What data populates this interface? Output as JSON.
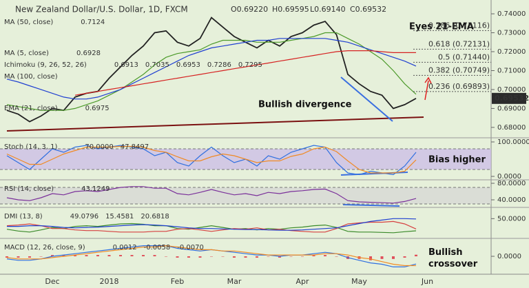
{
  "chart_data": [
    {
      "type": "line",
      "title": "New Zealand Dollar/U.S. Dollar, 1D, FXCM",
      "ohlc": [
        "O0.69220",
        "H0.69595",
        "L0.69140",
        "C0.69532"
      ],
      "ylim": [
        0.6745,
        0.7473
      ],
      "yticks": [
        {
          "value": 0.68,
          "label": "0.68000"
        },
        {
          "value": 0.69,
          "label": "0.69000"
        },
        {
          "value": 0.7,
          "label": "0.70000"
        },
        {
          "value": 0.71,
          "label": "0.71000"
        },
        {
          "value": 0.72,
          "label": "0.72000"
        },
        {
          "value": 0.73,
          "label": "0.73000"
        },
        {
          "value": 0.74,
          "label": "0.74000"
        }
      ],
      "series": [
        {
          "color": "#222222",
          "values": [
            0.689,
            0.687,
            0.683,
            0.686,
            0.69,
            0.689,
            0.696,
            0.698,
            0.699,
            0.706,
            0.712,
            0.718,
            0.723,
            0.73,
            0.731,
            0.725,
            0.723,
            0.727,
            0.738,
            0.733,
            0.728,
            0.725,
            0.722,
            0.726,
            0.723,
            0.728,
            0.73,
            0.734,
            0.736,
            0.729,
            0.708,
            0.703,
            0.699,
            0.697,
            0.69,
            0.692,
            0.69532,
            null
          ]
        },
        {
          "name": "EMA (21, close)",
          "color": "#4c9a2a",
          "values": [
            0.692,
            0.691,
            0.69,
            0.689,
            0.689,
            0.689,
            0.69,
            0.692,
            0.694,
            0.697,
            0.7,
            0.704,
            0.708,
            0.713,
            0.717,
            0.719,
            0.72,
            0.721,
            0.724,
            0.726,
            0.726,
            0.726,
            0.725,
            0.725,
            0.725,
            0.726,
            0.727,
            0.728,
            0.73,
            0.73,
            0.727,
            0.724,
            0.72,
            0.716,
            0.71,
            0.703,
            0.6975,
            null
          ]
        },
        {
          "name": "MA (50, close)",
          "color": "#1f3fd1",
          "values": [
            0.7055,
            0.704,
            0.702,
            0.7,
            0.698,
            0.696,
            0.695,
            0.695,
            0.696,
            0.698,
            0.7,
            0.703,
            0.706,
            0.709,
            0.712,
            0.715,
            0.718,
            0.72,
            0.722,
            0.723,
            0.724,
            0.725,
            0.726,
            0.726,
            0.727,
            0.727,
            0.727,
            0.727,
            0.727,
            0.726,
            0.725,
            0.723,
            0.721,
            0.719,
            0.717,
            0.715,
            0.7124,
            null
          ]
        },
        {
          "name": "MA (100, close)",
          "color": "#d62020",
          "values": [
            null,
            null,
            null,
            null,
            null,
            null,
            0.697,
            0.698,
            0.699,
            0.7,
            0.701,
            0.702,
            0.703,
            0.704,
            0.705,
            0.706,
            0.707,
            0.708,
            0.709,
            0.71,
            0.711,
            0.712,
            0.713,
            0.714,
            0.715,
            0.716,
            0.717,
            0.718,
            0.719,
            0.72,
            0.7205,
            0.7205,
            0.7205,
            0.72,
            0.7195,
            0.7195,
            0.7195,
            null
          ]
        }
      ],
      "legend": [
        {
          "label": "MA (50, close)",
          "values": [
            "0.7124"
          ],
          "colors": [
            "#1f3fd1"
          ]
        },
        {
          "label": "MA (5, close)",
          "values": [
            "0.6928"
          ],
          "colors": [
            "#d62020"
          ]
        },
        {
          "label": "Ichimoku (9, 26, 52, 26)",
          "values": [
            "0.6913",
            "0.7035",
            "0.6953",
            "0.7286",
            "0.7295"
          ],
          "colors": [
            "#1f3fd1",
            "#b03030",
            "#3a7a2a",
            "#3a7a2a",
            "#d62020"
          ]
        },
        {
          "label": "MA (100, close)",
          "values": [],
          "colors": []
        },
        {
          "label": "EMA (21, close)",
          "values": [
            "0.6975"
          ],
          "colors": [
            "#3a9a2a"
          ]
        }
      ],
      "fib_levels": [
        {
          "label": "0.786 (0.73116)",
          "value": 0.73116
        },
        {
          "label": "0.618 (0.72131)",
          "value": 0.72131
        },
        {
          "label": "0.5 (0.71440)",
          "value": 0.7144
        },
        {
          "label": "0.382 (0.70749)",
          "value": 0.70749
        },
        {
          "label": "0.236 (0.69893)",
          "value": 0.69893
        }
      ],
      "price_label": {
        "value": 0.69532,
        "label": "0.69532"
      },
      "annotations": [
        "Eyes 21-EMA",
        "Bullish divergence"
      ]
    },
    {
      "type": "line",
      "ylim": [
        -10,
        110
      ],
      "band": [
        20,
        80
      ],
      "yticks": [
        {
          "value": 100,
          "label": "100.0000"
        },
        {
          "value": 0,
          "label": "0.0000"
        }
      ],
      "series": [
        {
          "name": "Stoch (14, 3, 1)",
          "color": "#2f6fe0",
          "values": [
            60,
            40,
            20,
            50,
            80,
            70,
            85,
            90,
            80,
            85,
            90,
            85,
            80,
            60,
            70,
            40,
            30,
            60,
            85,
            60,
            40,
            50,
            30,
            60,
            50,
            70,
            80,
            90,
            85,
            40,
            10,
            5,
            15,
            10,
            5,
            30,
            70,
            null
          ]
        },
        {
          "color": "#f08a24",
          "values": [
            65,
            50,
            35,
            35,
            50,
            65,
            75,
            85,
            85,
            85,
            87,
            87,
            85,
            75,
            70,
            57,
            45,
            45,
            57,
            65,
            60,
            50,
            40,
            45,
            45,
            58,
            65,
            80,
            85,
            72,
            45,
            20,
            10,
            10,
            10,
            15,
            47.85,
            null
          ]
        }
      ],
      "legend": [
        {
          "label": "Stoch (14, 3, 1)",
          "values": [
            "70.0000",
            "47.8497"
          ],
          "colors": [
            "#2f6fe0",
            "#f08a24"
          ]
        }
      ],
      "annotations": [
        "Bias higher"
      ]
    },
    {
      "type": "line",
      "ylim": [
        21.7,
        86.7
      ],
      "band": [
        30,
        70
      ],
      "yticks": [
        {
          "value": 80,
          "label": "80.0000"
        },
        {
          "value": 40,
          "label": "40.0000"
        }
      ],
      "series": [
        {
          "name": "RSI (14, close)",
          "color": "#7a2f9a",
          "values": [
            45,
            40,
            38,
            45,
            55,
            52,
            60,
            62,
            60,
            65,
            70,
            72,
            72,
            68,
            68,
            55,
            52,
            58,
            65,
            58,
            52,
            55,
            50,
            58,
            55,
            60,
            62,
            65,
            66,
            55,
            38,
            35,
            34,
            33,
            32,
            36,
            43.12,
            null
          ]
        }
      ],
      "legend": [
        {
          "label": "RSI (14, close)",
          "values": [
            "43.1249"
          ],
          "colors": [
            "#7a2f9a"
          ]
        }
      ]
    },
    {
      "type": "line",
      "ylim": [
        -6,
        80
      ],
      "yticks": [
        {
          "value": 50,
          "label": "50.0000"
        }
      ],
      "series": [
        {
          "color": "#3a8a2a",
          "values": [
            20,
            15,
            12,
            18,
            25,
            22,
            28,
            30,
            28,
            32,
            35,
            36,
            34,
            30,
            30,
            22,
            20,
            25,
            30,
            25,
            20,
            22,
            18,
            22,
            20,
            24,
            26,
            30,
            32,
            25,
            14,
            12,
            12,
            11,
            10,
            13,
            15.46,
            null
          ]
        },
        {
          "color": "#d64040",
          "values": [
            30,
            32,
            35,
            30,
            22,
            22,
            18,
            16,
            16,
            14,
            12,
            12,
            12,
            14,
            14,
            20,
            22,
            18,
            14,
            18,
            22,
            20,
            24,
            18,
            20,
            16,
            14,
            12,
            12,
            22,
            35,
            38,
            40,
            40,
            42,
            35,
            20.68,
            null
          ]
        },
        {
          "color": "#1f3fd1",
          "values": [
            28,
            28,
            30,
            30,
            28,
            25,
            24,
            25,
            26,
            28,
            30,
            32,
            33,
            32,
            30,
            27,
            24,
            22,
            22,
            21,
            20,
            19,
            19,
            18,
            17,
            17,
            18,
            20,
            22,
            24,
            30,
            36,
            42,
            46,
            50,
            50,
            49.08,
            null
          ]
        }
      ],
      "legend": [
        {
          "label": "DMI (13, 8)",
          "values": [
            "49.0796",
            "15.4581",
            "20.6818"
          ],
          "colors": [
            "#1f3fd1",
            "#3a8a2a",
            "#d64040"
          ]
        }
      ]
    },
    {
      "type": "line",
      "ylim": [
        -0.013,
        0.013
      ],
      "yticks": [
        {
          "value": 0,
          "label": "0.0000"
        }
      ],
      "categories": [
        null,
        null,
        null,
        null,
        "Dec",
        null,
        null,
        null,
        null,
        "2018",
        null,
        null,
        null,
        null,
        null,
        "Feb",
        null,
        null,
        null,
        null,
        "Mar",
        null,
        null,
        null,
        null,
        null,
        "Apr",
        null,
        null,
        null,
        null,
        "May",
        null,
        null,
        null,
        null,
        null,
        "Jun"
      ],
      "series": [
        {
          "style": "bar",
          "color": "#e0505a",
          "values": [
            -0.001,
            -0.001,
            -0.001,
            0,
            0.001,
            0.001,
            0.001,
            0.001,
            0.001,
            0.001,
            0.001,
            0.001,
            0.001,
            0.001,
            0,
            -0.001,
            -0.001,
            -0.001,
            0,
            0,
            -0.001,
            -0.001,
            -0.001,
            0,
            -0.001,
            0,
            0,
            0.001,
            0.001,
            0,
            -0.002,
            -0.002,
            -0.003,
            -0.002,
            -0.002,
            -0.001,
            0.0012,
            null
          ]
        },
        {
          "color": "#2f6fe0",
          "values": [
            -0.002,
            -0.003,
            -0.003,
            -0.002,
            0,
            0.001,
            0.002,
            0.003,
            0.004,
            0.005,
            0.006,
            0.007,
            0.008,
            0.008,
            0.008,
            0.006,
            0.005,
            0.004,
            0.005,
            0.004,
            0.003,
            0.002,
            0.001,
            0.001,
            0,
            0.001,
            0.001,
            0.002,
            0.003,
            0.002,
            -0.001,
            -0.003,
            -0.005,
            -0.006,
            -0.008,
            -0.008,
            -0.0058,
            null
          ]
        },
        {
          "color": "#f08a24",
          "values": [
            -0.001,
            -0.002,
            -0.002,
            -0.002,
            -0.001,
            0,
            0.001,
            0.002,
            0.003,
            0.004,
            0.005,
            0.006,
            0.007,
            0.007,
            0.008,
            0.007,
            0.006,
            0.005,
            0.005,
            0.004,
            0.004,
            0.003,
            0.002,
            0.001,
            0.001,
            0.001,
            0.001,
            0.001,
            0.002,
            0.002,
            0.001,
            -0.001,
            -0.002,
            -0.004,
            -0.006,
            -0.007,
            -0.007,
            null
          ]
        }
      ],
      "legend": [
        {
          "label": "MACD (12, 26, close, 9)",
          "values": [
            "0.0012",
            "-0.0058",
            "-0.0070"
          ],
          "colors": [
            "#e0505a",
            "#2f6fe0",
            "#f08a24"
          ]
        }
      ],
      "annotations": [
        "Bullish crossover"
      ]
    }
  ]
}
